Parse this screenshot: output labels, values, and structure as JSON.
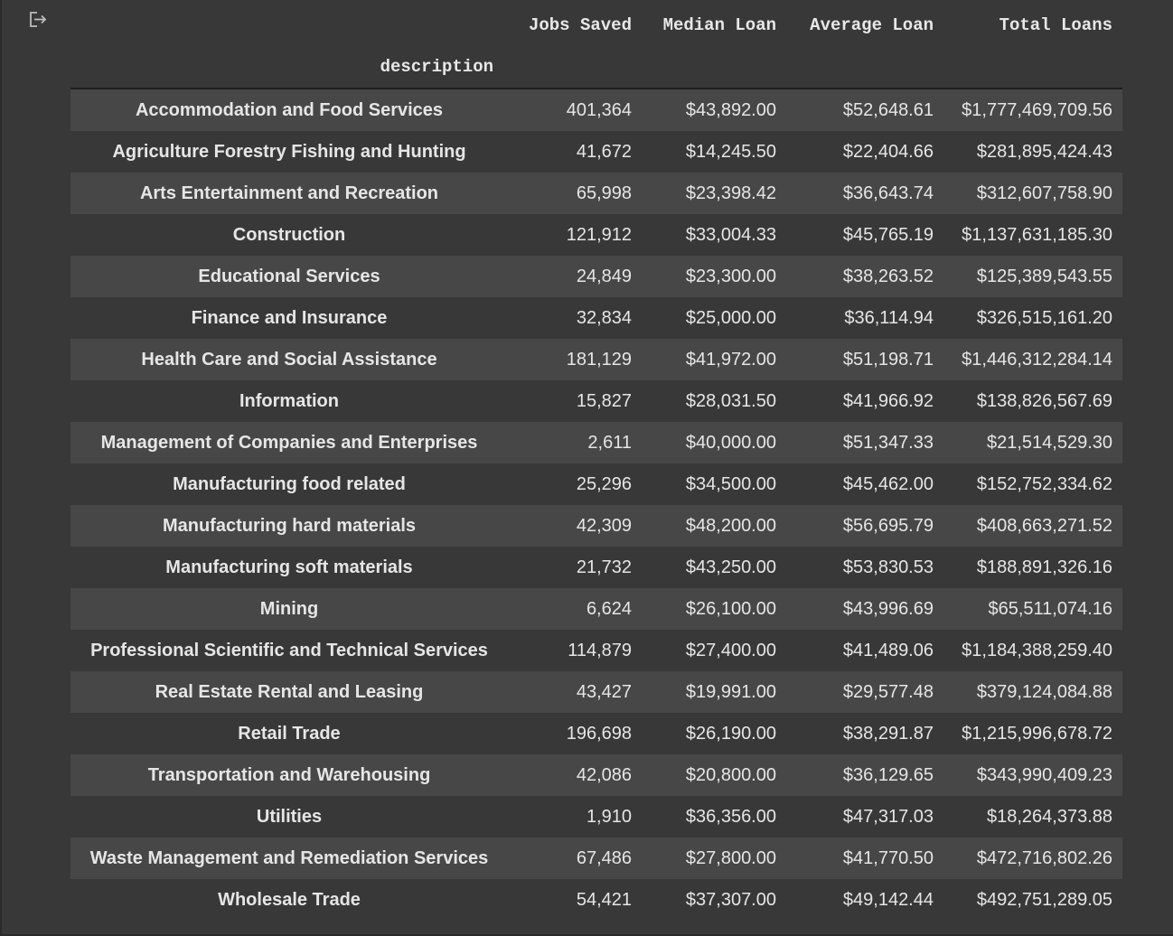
{
  "table": {
    "index_name": "description",
    "columns": [
      "Jobs Saved",
      "Median Loan",
      "Average Loan",
      "Total Loans"
    ],
    "rows": [
      {
        "description": "Accommodation and Food Services",
        "jobs_saved": "401,364",
        "median_loan": "$43,892.00",
        "average_loan": "$52,648.61",
        "total_loans": "$1,777,469,709.56"
      },
      {
        "description": "Agriculture Forestry Fishing and Hunting",
        "jobs_saved": "41,672",
        "median_loan": "$14,245.50",
        "average_loan": "$22,404.66",
        "total_loans": "$281,895,424.43"
      },
      {
        "description": "Arts Entertainment and Recreation",
        "jobs_saved": "65,998",
        "median_loan": "$23,398.42",
        "average_loan": "$36,643.74",
        "total_loans": "$312,607,758.90"
      },
      {
        "description": "Construction",
        "jobs_saved": "121,912",
        "median_loan": "$33,004.33",
        "average_loan": "$45,765.19",
        "total_loans": "$1,137,631,185.30"
      },
      {
        "description": "Educational Services",
        "jobs_saved": "24,849",
        "median_loan": "$23,300.00",
        "average_loan": "$38,263.52",
        "total_loans": "$125,389,543.55"
      },
      {
        "description": "Finance and Insurance",
        "jobs_saved": "32,834",
        "median_loan": "$25,000.00",
        "average_loan": "$36,114.94",
        "total_loans": "$326,515,161.20"
      },
      {
        "description": "Health Care and Social Assistance",
        "jobs_saved": "181,129",
        "median_loan": "$41,972.00",
        "average_loan": "$51,198.71",
        "total_loans": "$1,446,312,284.14"
      },
      {
        "description": "Information",
        "jobs_saved": "15,827",
        "median_loan": "$28,031.50",
        "average_loan": "$41,966.92",
        "total_loans": "$138,826,567.69"
      },
      {
        "description": "Management of Companies and Enterprises",
        "jobs_saved": "2,611",
        "median_loan": "$40,000.00",
        "average_loan": "$51,347.33",
        "total_loans": "$21,514,529.30"
      },
      {
        "description": "Manufacturing food related",
        "jobs_saved": "25,296",
        "median_loan": "$34,500.00",
        "average_loan": "$45,462.00",
        "total_loans": "$152,752,334.62"
      },
      {
        "description": "Manufacturing hard materials",
        "jobs_saved": "42,309",
        "median_loan": "$48,200.00",
        "average_loan": "$56,695.79",
        "total_loans": "$408,663,271.52"
      },
      {
        "description": "Manufacturing soft materials",
        "jobs_saved": "21,732",
        "median_loan": "$43,250.00",
        "average_loan": "$53,830.53",
        "total_loans": "$188,891,326.16"
      },
      {
        "description": "Mining",
        "jobs_saved": "6,624",
        "median_loan": "$26,100.00",
        "average_loan": "$43,996.69",
        "total_loans": "$65,511,074.16"
      },
      {
        "description": "Professional Scientific and Technical Services",
        "jobs_saved": "114,879",
        "median_loan": "$27,400.00",
        "average_loan": "$41,489.06",
        "total_loans": "$1,184,388,259.40"
      },
      {
        "description": "Real Estate Rental and Leasing",
        "jobs_saved": "43,427",
        "median_loan": "$19,991.00",
        "average_loan": "$29,577.48",
        "total_loans": "$379,124,084.88"
      },
      {
        "description": "Retail Trade",
        "jobs_saved": "196,698",
        "median_loan": "$26,190.00",
        "average_loan": "$38,291.87",
        "total_loans": "$1,215,996,678.72"
      },
      {
        "description": "Transportation and Warehousing",
        "jobs_saved": "42,086",
        "median_loan": "$20,800.00",
        "average_loan": "$36,129.65",
        "total_loans": "$343,990,409.23"
      },
      {
        "description": "Utilities",
        "jobs_saved": "1,910",
        "median_loan": "$36,356.00",
        "average_loan": "$47,317.03",
        "total_loans": "$18,264,373.88"
      },
      {
        "description": "Waste Management and Remediation Services",
        "jobs_saved": "67,486",
        "median_loan": "$27,800.00",
        "average_loan": "$41,770.50",
        "total_loans": "$472,716,802.26"
      },
      {
        "description": "Wholesale Trade",
        "jobs_saved": "54,421",
        "median_loan": "$37,307.00",
        "average_loan": "$49,142.44",
        "total_loans": "$492,751,289.05"
      }
    ]
  },
  "icons": {
    "output_icon": "output-redirect-icon"
  },
  "colors": {
    "background": "#383838",
    "row_stripe": "#474747",
    "text": "#e6e6e6"
  }
}
